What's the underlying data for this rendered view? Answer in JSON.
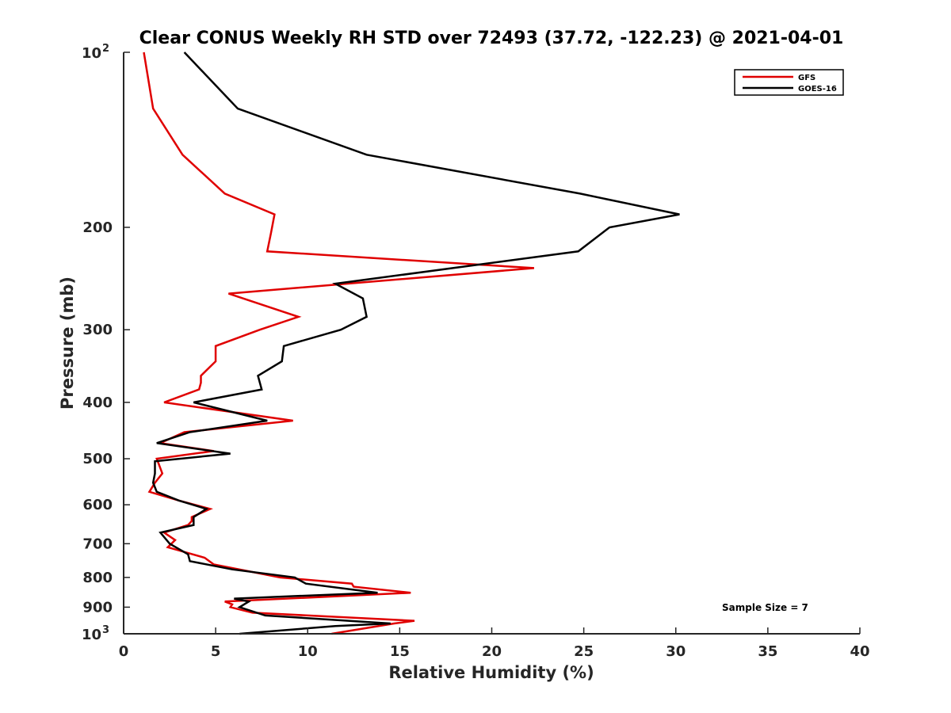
{
  "chart_data": {
    "type": "line",
    "title": "Clear CONUS Weekly RH STD over 72493 (37.72, -122.23) @ 2021-04-01",
    "xlabel": "Relative Humidity (%)",
    "ylabel": "Pressure (mb)",
    "xlim": [
      0,
      40
    ],
    "ylim": [
      100,
      1000
    ],
    "y_scale": "log",
    "y_reversed": true,
    "x_ticks": [
      "0",
      "5",
      "10",
      "15",
      "20",
      "25",
      "30",
      "35",
      "40"
    ],
    "x_tick_values": [
      0,
      5,
      10,
      15,
      20,
      25,
      30,
      35,
      40
    ],
    "y_ticks": [
      {
        "value": 100,
        "base": "10",
        "exp": "2"
      },
      {
        "value": 200,
        "label": "200"
      },
      {
        "value": 300,
        "label": "300"
      },
      {
        "value": 400,
        "label": "400"
      },
      {
        "value": 500,
        "label": "500"
      },
      {
        "value": 600,
        "label": "600"
      },
      {
        "value": 700,
        "label": "700"
      },
      {
        "value": 800,
        "label": "800"
      },
      {
        "value": 900,
        "label": "900"
      },
      {
        "value": 1000,
        "base": "10",
        "exp": "3"
      }
    ],
    "grid": false,
    "legend_position": "top-right",
    "annotation": "Sample Size = 7",
    "series": [
      {
        "name": "GFS",
        "color": "#e00000",
        "points": [
          [
            1.1,
            100
          ],
          [
            1.6,
            125
          ],
          [
            3.2,
            150
          ],
          [
            5.5,
            175
          ],
          [
            8.2,
            190
          ],
          [
            8.0,
            205
          ],
          [
            7.8,
            220
          ],
          [
            22.3,
            235
          ],
          [
            5.7,
            260
          ],
          [
            9.5,
            285
          ],
          [
            7.4,
            300
          ],
          [
            5.0,
            320
          ],
          [
            5.0,
            340
          ],
          [
            4.2,
            360
          ],
          [
            4.2,
            370
          ],
          [
            4.1,
            380
          ],
          [
            2.2,
            400
          ],
          [
            9.2,
            430
          ],
          [
            3.3,
            450
          ],
          [
            2.0,
            470
          ],
          [
            4.9,
            485
          ],
          [
            1.8,
            500
          ],
          [
            2.1,
            530
          ],
          [
            1.7,
            550
          ],
          [
            1.4,
            570
          ],
          [
            3.0,
            590
          ],
          [
            4.7,
            610
          ],
          [
            3.7,
            630
          ],
          [
            3.7,
            640
          ],
          [
            3.5,
            650
          ],
          [
            2.2,
            670
          ],
          [
            2.8,
            690
          ],
          [
            2.4,
            710
          ],
          [
            4.4,
            740
          ],
          [
            4.9,
            760
          ],
          [
            8.5,
            800
          ],
          [
            12.4,
            820
          ],
          [
            12.5,
            830
          ],
          [
            15.6,
            850
          ],
          [
            5.5,
            880
          ],
          [
            5.9,
            890
          ],
          [
            5.8,
            900
          ],
          [
            7.0,
            920
          ],
          [
            15.8,
            950
          ],
          [
            14.7,
            960
          ],
          [
            11.3,
            1000
          ]
        ]
      },
      {
        "name": "GOES-16",
        "color": "#000000",
        "points": [
          [
            3.3,
            100
          ],
          [
            6.2,
            125
          ],
          [
            13.2,
            150
          ],
          [
            24.8,
            175
          ],
          [
            30.2,
            190
          ],
          [
            26.4,
            200
          ],
          [
            24.7,
            220
          ],
          [
            11.5,
            250
          ],
          [
            13.0,
            265
          ],
          [
            13.2,
            285
          ],
          [
            11.8,
            300
          ],
          [
            8.7,
            320
          ],
          [
            8.6,
            340
          ],
          [
            7.3,
            360
          ],
          [
            7.5,
            380
          ],
          [
            3.8,
            400
          ],
          [
            7.8,
            430
          ],
          [
            3.6,
            450
          ],
          [
            1.8,
            470
          ],
          [
            5.8,
            490
          ],
          [
            1.7,
            505
          ],
          [
            1.7,
            530
          ],
          [
            1.6,
            550
          ],
          [
            1.8,
            570
          ],
          [
            3.0,
            590
          ],
          [
            4.5,
            610
          ],
          [
            3.8,
            630
          ],
          [
            3.8,
            650
          ],
          [
            2.0,
            670
          ],
          [
            2.5,
            700
          ],
          [
            3.5,
            730
          ],
          [
            3.6,
            750
          ],
          [
            5.9,
            775
          ],
          [
            9.3,
            800
          ],
          [
            9.9,
            820
          ],
          [
            13.8,
            850
          ],
          [
            6.0,
            870
          ],
          [
            6.8,
            880
          ],
          [
            6.3,
            900
          ],
          [
            7.7,
            930
          ],
          [
            14.5,
            960
          ],
          [
            11.5,
            970
          ],
          [
            6.3,
            1000
          ]
        ]
      }
    ]
  }
}
